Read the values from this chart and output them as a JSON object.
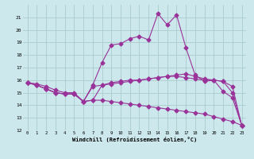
{
  "xlabel": "Windchill (Refroidissement éolien,°C)",
  "background_color": "#cce8ec",
  "grid_color": "#aacccc",
  "line_color": "#993399",
  "x_ticks": [
    0,
    1,
    2,
    3,
    4,
    5,
    6,
    7,
    8,
    9,
    10,
    11,
    12,
    13,
    14,
    15,
    16,
    17,
    18,
    19,
    20,
    21,
    22,
    23
  ],
  "ylim": [
    12,
    22
  ],
  "xlim": [
    -0.5,
    23.5
  ],
  "y_ticks": [
    12,
    13,
    14,
    15,
    16,
    17,
    18,
    19,
    20,
    21
  ],
  "line1_x": [
    0,
    1,
    2,
    3,
    4,
    5,
    6,
    7,
    8,
    9,
    10,
    11,
    12,
    13,
    14,
    15,
    16,
    17,
    18,
    19,
    20,
    21,
    22,
    23
  ],
  "line1_y": [
    15.8,
    15.6,
    15.3,
    15.0,
    14.9,
    14.9,
    14.3,
    14.4,
    14.4,
    14.3,
    14.2,
    14.1,
    14.0,
    13.9,
    13.8,
    13.7,
    13.6,
    13.5,
    13.4,
    13.3,
    13.1,
    12.9,
    12.7,
    12.4
  ],
  "line2_x": [
    0,
    1,
    2,
    3,
    4,
    5,
    6,
    7,
    8,
    9,
    10,
    11,
    12,
    13,
    14,
    15,
    16,
    17,
    18,
    19,
    20,
    21,
    22,
    23
  ],
  "line2_y": [
    15.8,
    15.6,
    15.3,
    15.0,
    14.9,
    14.9,
    14.3,
    14.4,
    15.6,
    15.8,
    15.9,
    16.0,
    16.0,
    16.1,
    16.2,
    16.3,
    16.3,
    16.2,
    16.1,
    16.0,
    16.0,
    15.9,
    15.5,
    12.4
  ],
  "line3_x": [
    0,
    1,
    2,
    3,
    4,
    5,
    6,
    7,
    8,
    9,
    10,
    11,
    12,
    13,
    14,
    15,
    16,
    17,
    18,
    19,
    20,
    21,
    22,
    23
  ],
  "line3_y": [
    15.8,
    15.6,
    15.3,
    15.0,
    14.9,
    14.9,
    14.3,
    15.5,
    15.6,
    15.7,
    15.8,
    15.9,
    16.0,
    16.1,
    16.2,
    16.3,
    16.4,
    16.5,
    16.3,
    16.1,
    16.0,
    15.9,
    15.0,
    12.4
  ],
  "line4_x": [
    0,
    1,
    2,
    3,
    4,
    5,
    6,
    7,
    8,
    9,
    10,
    11,
    12,
    13,
    14,
    15,
    16,
    17,
    18,
    19,
    20,
    21,
    22,
    23
  ],
  "line4_y": [
    15.8,
    15.7,
    15.5,
    15.2,
    15.0,
    15.0,
    14.3,
    15.6,
    17.4,
    18.8,
    18.9,
    19.3,
    19.5,
    19.2,
    21.3,
    20.4,
    21.2,
    18.6,
    16.4,
    15.9,
    16.0,
    15.1,
    14.6,
    12.4
  ]
}
